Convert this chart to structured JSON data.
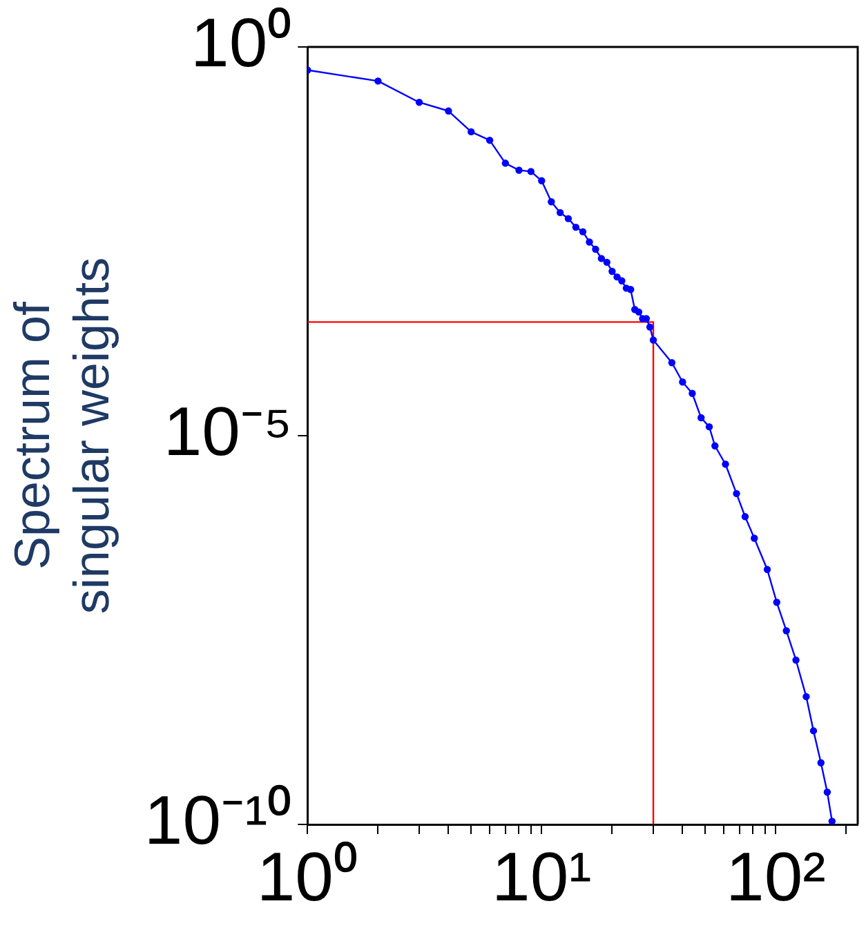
{
  "chart_data": {
    "type": "line",
    "ylabel": "Spectrum of\nsingular weights",
    "log": "xy",
    "grid": false,
    "legend": false,
    "marker": "circle",
    "xlim": [
      1,
      224
    ],
    "ylim": [
      1e-10,
      1
    ],
    "xticks": [
      {
        "value": 1,
        "label": "10⁰"
      },
      {
        "value": 2,
        "label": null
      },
      {
        "value": 3,
        "label": null
      },
      {
        "value": 4,
        "label": null
      },
      {
        "value": 5,
        "label": null
      },
      {
        "value": 6,
        "label": null
      },
      {
        "value": 7,
        "label": null
      },
      {
        "value": 8,
        "label": null
      },
      {
        "value": 9,
        "label": null
      },
      {
        "value": 10,
        "label": "10¹"
      },
      {
        "value": 20,
        "label": null
      },
      {
        "value": 30,
        "label": null
      },
      {
        "value": 40,
        "label": null
      },
      {
        "value": 50,
        "label": null
      },
      {
        "value": 60,
        "label": null
      },
      {
        "value": 70,
        "label": null
      },
      {
        "value": 80,
        "label": null
      },
      {
        "value": 90,
        "label": null
      },
      {
        "value": 100,
        "label": "10²"
      },
      {
        "value": 200,
        "label": null
      }
    ],
    "yticks": [
      {
        "value": 1e-10,
        "label": "10⁻¹⁰"
      },
      {
        "value": 1e-05,
        "label": "10⁻⁵"
      },
      {
        "value": 1,
        "label": "10⁰"
      }
    ],
    "series": [
      {
        "color": "#0000ff",
        "x": [
          1,
          2,
          3,
          4,
          5,
          6,
          7,
          8,
          9,
          10,
          11,
          12,
          13,
          14,
          15,
          16,
          17,
          18,
          19,
          20,
          21,
          22,
          23,
          24,
          25,
          26,
          27,
          28,
          29,
          30,
          36,
          40,
          44,
          48,
          52,
          55,
          61,
          68,
          74,
          81,
          92,
          101,
          111,
          122,
          135,
          145,
          156,
          166,
          174
        ],
        "values": [
          0.504,
          0.364,
          0.194,
          0.15,
          0.081,
          0.063,
          0.032,
          0.026,
          0.025,
          0.019,
          0.0102,
          0.0074,
          0.0062,
          0.0048,
          0.0042,
          0.0031,
          0.0025,
          0.0019,
          0.0017,
          0.0013,
          0.0011,
          0.00098,
          0.00079,
          0.00076,
          0.00042,
          0.00039,
          0.00032,
          0.00032,
          0.00025,
          0.00017,
          8.7e-05,
          4.9e-05,
          3.5e-05,
          1.7e-05,
          1.3e-05,
          7.4e-06,
          4.3e-06,
          1.8e-06,
          9.1e-07,
          4.8e-07,
          1.9e-07,
          7.2e-08,
          3.1e-08,
          1.3e-08,
          4.4e-09,
          1.6e-09,
          6.2e-10,
          2.6e-10,
          1.1e-10
        ]
      },
      {
        "type": "line",
        "marker": "none",
        "color": "#ff0000",
        "x": [
          1,
          30,
          30
        ],
        "values": [
          0.00029,
          0.00029,
          1e-10
        ]
      }
    ]
  }
}
